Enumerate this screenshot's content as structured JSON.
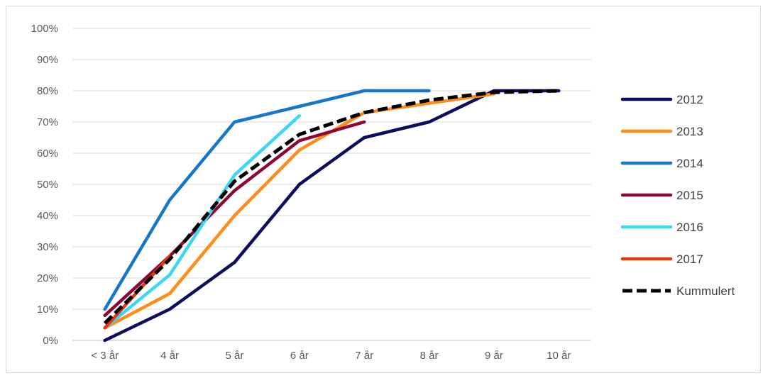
{
  "chart_data": {
    "type": "line",
    "title": "",
    "xlabel": "",
    "ylabel": "",
    "categories": [
      "< 3 år",
      "4 år",
      "5 år",
      "6 år",
      "7 år",
      "8 år",
      "9 år",
      "10 år"
    ],
    "ylim": [
      0,
      100
    ],
    "yticks": [
      "0%",
      "10%",
      "20%",
      "30%",
      "40%",
      "50%",
      "60%",
      "70%",
      "80%",
      "90%",
      "100%"
    ],
    "grid": true,
    "legend_position": "right",
    "series": [
      {
        "name": "2012",
        "color": "#0d0d5e",
        "dashed": false,
        "values": [
          0,
          10,
          25,
          50,
          65,
          70,
          80,
          80
        ]
      },
      {
        "name": "2013",
        "color": "#ff8c1a",
        "dashed": false,
        "values": [
          4,
          15,
          40,
          61,
          73,
          76,
          79,
          null
        ]
      },
      {
        "name": "2014",
        "color": "#1677c8",
        "dashed": false,
        "values": [
          10,
          45,
          70,
          75,
          80,
          80,
          null,
          null
        ]
      },
      {
        "name": "2015",
        "color": "#8b0a35",
        "dashed": false,
        "values": [
          8,
          27,
          48,
          64,
          70,
          null,
          null,
          null
        ]
      },
      {
        "name": "2016",
        "color": "#3dd6f5",
        "dashed": false,
        "values": [
          4,
          21,
          53,
          72,
          null,
          null,
          null,
          null
        ]
      },
      {
        "name": "2017",
        "color": "#e8380d",
        "dashed": false,
        "values": [
          4,
          27,
          null,
          null,
          null,
          null,
          null,
          null
        ]
      },
      {
        "name": "Kummulert",
        "color": "#000000",
        "dashed": true,
        "values": [
          5.5,
          26,
          51,
          66,
          73,
          77,
          79.5,
          80
        ]
      }
    ]
  }
}
